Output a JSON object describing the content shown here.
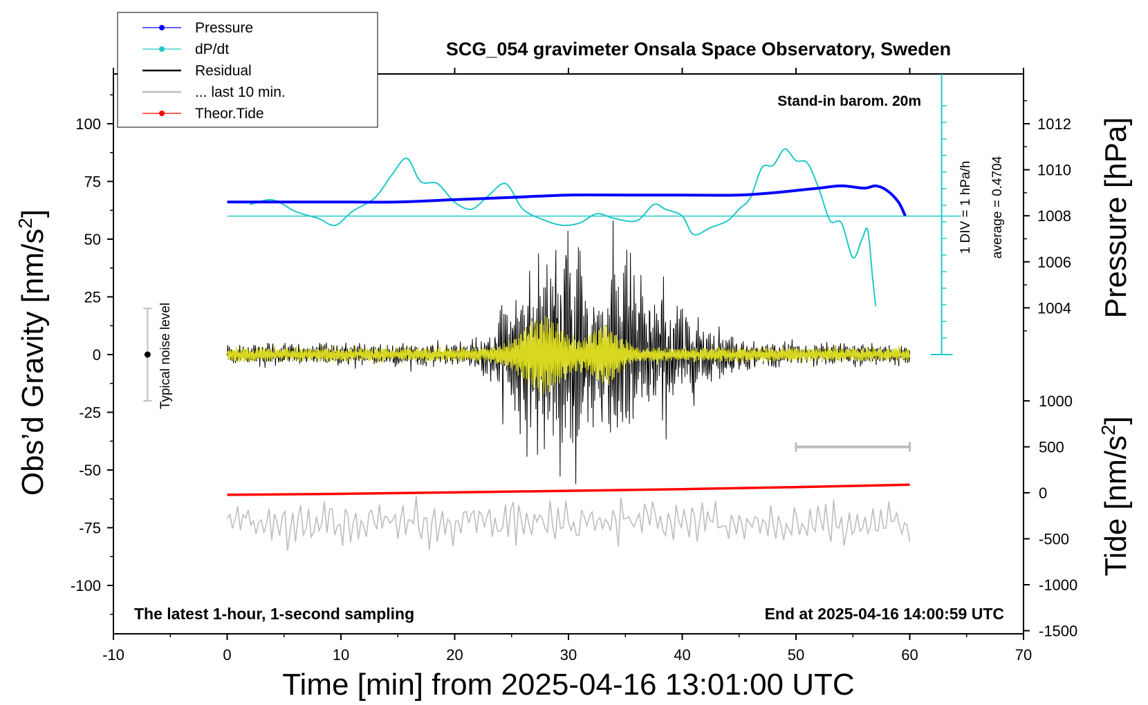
{
  "chart_data": {
    "type": "line",
    "title": "SCG_054 gravimeter Onsala Space Observatory, Sweden",
    "xlabel": "Time [min] from 2025-04-16 13:01:00 UTC",
    "ylabel_left": "Obs'd Gravity [nm/s²]",
    "ylabel_left_main": "Obs’d Gravity [nm/s",
    "ylabel_left_sup": "2",
    "ylabel_left_end": "]",
    "ylabel_right_top": "Pressure [hPa]",
    "ylabel_right_bottom_main": "Tide [nm/s",
    "ylabel_right_bottom_sup": "2",
    "ylabel_right_bottom_end": "]",
    "xlim": [
      -10,
      70
    ],
    "ylim": [
      -120,
      120
    ],
    "x_ticks": [
      "-10",
      "0",
      "10",
      "20",
      "30",
      "40",
      "50",
      "60",
      "70"
    ],
    "y_ticks": [
      "100",
      "75",
      "50",
      "25",
      "0",
      "-25",
      "-50",
      "-75",
      "-100"
    ],
    "pressure_ticks": [
      "1012",
      "1010",
      "1008",
      "1006",
      "1004"
    ],
    "tide_ticks": [
      "1000",
      "500",
      "0",
      "-500",
      "-1000",
      "-1500"
    ],
    "annotations": {
      "stand_in": "Stand-in barom. 20m",
      "div_label": "1 DIV = 1 hPa/h",
      "average_label": "average = 0.4704",
      "noise_label": "Typical noise level",
      "bottom_left": "The latest 1-hour, 1-second sampling",
      "bottom_right": "End at 2025-04-16 14:00:59 UTC"
    },
    "legend": [
      {
        "name": "Pressure",
        "color": "#0000ff",
        "marker": "dot"
      },
      {
        "name": "dP/dt",
        "color": "#20c8c8",
        "marker": "dot"
      },
      {
        "name": "Residual",
        "color": "#000000",
        "marker": "none"
      },
      {
        "name": "... last 10 min.",
        "color": "#bbbbbb",
        "marker": "none"
      },
      {
        "name": "Theor.Tide",
        "color": "#ff0000",
        "marker": "dot"
      }
    ],
    "pressure": {
      "x": [
        0,
        5,
        10,
        15,
        20,
        25,
        30,
        35,
        40,
        45,
        48,
        50,
        52,
        54,
        56,
        57,
        58,
        59,
        59.6
      ],
      "y": [
        1008.6,
        1008.6,
        1008.6,
        1008.6,
        1008.7,
        1008.8,
        1008.9,
        1008.9,
        1008.9,
        1008.9,
        1009.0,
        1009.1,
        1009.2,
        1009.3,
        1009.2,
        1009.3,
        1009.1,
        1008.6,
        1008.0
      ]
    },
    "dpdt": {
      "x": [
        2,
        4,
        6,
        8,
        9.5,
        11,
        13,
        14.5,
        15.8,
        17,
        18.5,
        20,
        21.5,
        23,
        24.5,
        26,
        28,
        29.5,
        31,
        32.5,
        34,
        36,
        37.5,
        38.5,
        40,
        41,
        42.5,
        44,
        45,
        46,
        47,
        48,
        49,
        50,
        51,
        52,
        53,
        54,
        55,
        55.8,
        56.3,
        56.7,
        57
      ],
      "y": [
        65,
        67,
        62,
        59,
        56,
        62,
        68,
        78,
        85,
        75,
        74,
        66,
        63,
        69,
        74,
        63,
        58,
        56,
        57,
        61,
        59,
        58,
        65,
        63,
        60,
        52,
        55,
        58,
        63,
        68,
        81,
        82,
        89,
        84,
        83,
        72,
        58,
        57,
        42,
        50,
        54,
        35,
        21
      ]
    },
    "tide": {
      "x": [
        0,
        10,
        20,
        30,
        40,
        50,
        60
      ],
      "y": [
        -10,
        -5,
        2,
        10,
        18,
        28,
        40
      ]
    },
    "average_line_value": 60,
    "residual_range_minutes": [
      0,
      60
    ],
    "grey_bar_minutes": [
      50,
      60
    ],
    "noise_bar_minute": -7,
    "noise_bar_range": [
      -20,
      20
    ]
  }
}
